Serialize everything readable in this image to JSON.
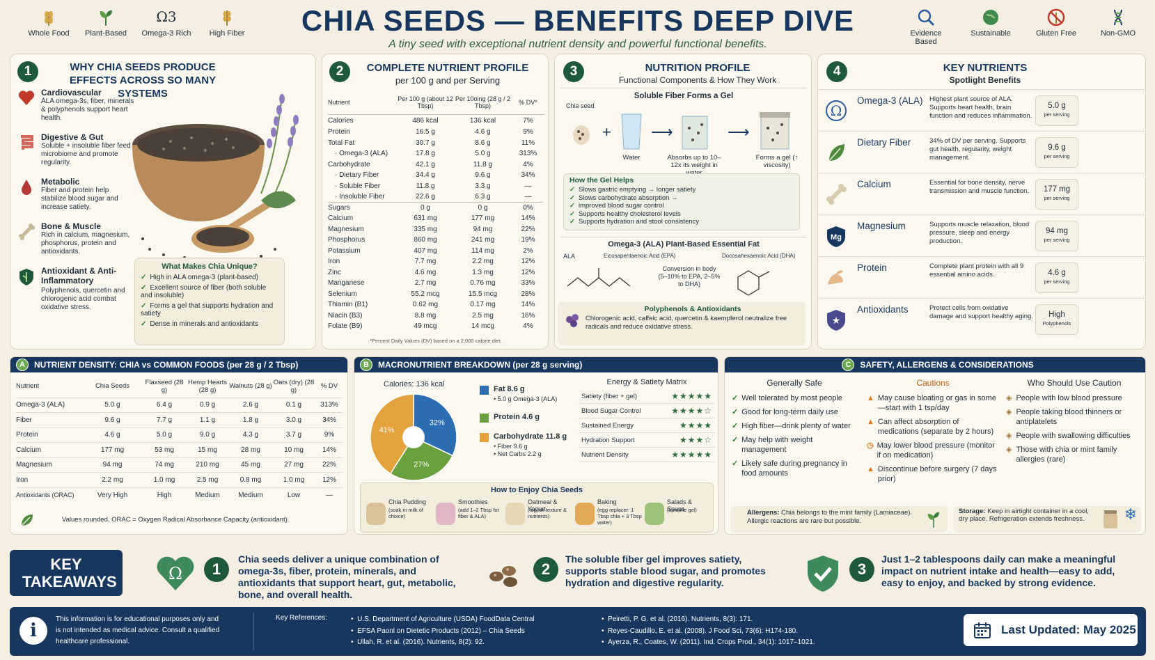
{
  "header": {
    "title": "CHIA SEEDS — BENEFITS DEEP DIVE",
    "subtitle": "A tiny seed with exceptional nutrient density and powerful functional benefits.",
    "left_badges": [
      "Whole Food",
      "Plant-Based",
      "Omega-3 Rich",
      "High Fiber"
    ],
    "omega_symbol": "Ω3",
    "right_badges": [
      "Evidence Based",
      "Sustainable",
      "Gluten Free",
      "Non-GMO"
    ]
  },
  "section1": {
    "num": "1",
    "title": "WHY CHIA SEEDS PRODUCE EFFECTS ACROSS SO MANY SYSTEMS",
    "systems": [
      {
        "name": "Cardiovascular",
        "desc": "ALA omega-3s, fiber, minerals & polyphenols support heart health.",
        "icon": "heart-icon"
      },
      {
        "name": "Digestive & Gut",
        "desc": "Soluble + insoluble fiber feed microbiome and promote regularity.",
        "icon": "gut-icon"
      },
      {
        "name": "Metabolic",
        "desc": "Fiber and protein help stabilize blood sugar and increase satiety.",
        "icon": "drop-icon"
      },
      {
        "name": "Bone & Muscle",
        "desc": "Rich in calcium, magnesium, phosphorus, protein and antioxidants.",
        "icon": "bone-icon"
      },
      {
        "name": "Antioxidant & Anti-Inflammatory",
        "desc": "Polyphenols, quercetin and chlorogenic acid combat oxidative stress.",
        "icon": "shield-icon"
      }
    ],
    "unique_title": "What Makes Chia Unique?",
    "unique_items": [
      "High in ALA omega-3 (plant-based)",
      "Excellent source of fiber (both soluble and insoluble)",
      "Forms a gel that supports hydration and satiety",
      "Dense in minerals and antioxidants"
    ]
  },
  "section2": {
    "num": "2",
    "title": "COMPLETE NUTRIENT PROFILE",
    "subtitle": "per 100 g and per Serving",
    "headers": [
      "Nutrient",
      "Per 100 g (about 12 Tbsp)",
      "Per 10oing (28 g / 2 Tbsp)",
      "% DV*"
    ],
    "rows": [
      [
        "Calories",
        "486 kcal",
        "136 kcal",
        "7%"
      ],
      [
        "Protein",
        "16.5 g",
        "4.6 g",
        "9%"
      ],
      [
        "Total Fat",
        "30.7 g",
        "8.6 g",
        "11%"
      ],
      [
        "· Omega-3 (ALA)",
        "17.8 g",
        "5.0 g",
        "313%"
      ],
      [
        "Carbohydrate",
        "42.1 g",
        "11.8 g",
        "4%"
      ],
      [
        "· Dietary Fiber",
        "34.4 g",
        "9.6 g",
        "34%"
      ],
      [
        "· Soluble Fiber",
        "11.8 g",
        "3.3 g",
        "—"
      ],
      [
        "· Insoluble Fiber",
        "22.6 g",
        "6.3 g",
        "—"
      ],
      [
        "Sugars",
        "0 g",
        "0 g",
        "0%"
      ],
      [
        "Calcium",
        "631 mg",
        "177 mg",
        "14%"
      ],
      [
        "Magnesium",
        "335 mg",
        "94 mg",
        "22%"
      ],
      [
        "Phosphorus",
        "860 mg",
        "241 mg",
        "19%"
      ],
      [
        "Potassium",
        "407 mg",
        "114 mg",
        "2%"
      ],
      [
        "Iron",
        "7.7 mg",
        "2.2 mg",
        "12%"
      ],
      [
        "Zinc",
        "4.6 mg",
        "1.3 mg",
        "12%"
      ],
      [
        "Manganese",
        "2.7 mg",
        "0.76 mg",
        "33%"
      ],
      [
        "Selenium",
        "55.2 mcg",
        "15.5 mcg",
        "28%"
      ],
      [
        "Thiamin (B1)",
        "0.62 mg",
        "0.17 mg",
        "14%"
      ],
      [
        "Niacin (B3)",
        "8.8 mg",
        "2.5 mg",
        "16%"
      ],
      [
        "Folate (B9)",
        "49 mcg",
        "14 mcg",
        "4%"
      ]
    ],
    "footnote": "*Percent Daily Values (DV) based on a 2,000 calorie diet."
  },
  "section3": {
    "num": "3",
    "title": "NUTRITION PROFILE",
    "subtitle": "Functional Components & How They Work",
    "gel_title": "Soluble Fiber Forms a Gel",
    "gel_steps": [
      "Chia seed",
      "Water",
      "Absorbs up to 10–12x its weight in water",
      "Forms a gel (↑ viscosity)"
    ],
    "helps_title": "How the Gel Helps",
    "helps": [
      "Slows gastric emptying → longer satiety",
      "Slows carbohydrate absorption →",
      "improved blood sugar control",
      "Supports healthy cholesterol levels",
      "Supports hydration and stool consistency"
    ],
    "omega_title": "Omega-3 (ALA) Plant-Based Essential Fat",
    "omega_labels": [
      "ALA",
      "Eicosapentaenoic Acid (EPA)",
      "Docosahexaenoic Acid (DHA)"
    ],
    "conversion": "Conversion in body (5–10% to EPA, 2–5% to DHA)",
    "poly_title": "Polyphenols & Antioxidants",
    "poly_text": "Chlorogenic acid, caffeic acid, quercetin & kaempferol neutralize free radicals and reduce oxidative stress."
  },
  "section4": {
    "num": "4",
    "title": "KEY NUTRIENTS",
    "subtitle": "Spotlight Benefits",
    "items": [
      {
        "name": "Omega-3 (ALA)",
        "desc": "Highest plant source of ALA. Supports heart health, brain function and reduces inflammation.",
        "value": "5.0 g",
        "unit": "per serving",
        "icon": "omega-icon"
      },
      {
        "name": "Dietary Fiber",
        "desc": "34% of DV per serving. Supports gut health, regularity, weight management.",
        "value": "9.6 g",
        "unit": "per serving",
        "icon": "leaf-icon"
      },
      {
        "name": "Calcium",
        "desc": "Essential for bone density, nerve transmission and muscle function.",
        "value": "177 mg",
        "unit": "per serving",
        "icon": "bone-icon"
      },
      {
        "name": "Magnesium",
        "desc": "Supports muscle relaxation, blood pressure, sleep and energy production.",
        "value": "94 mg",
        "unit": "per serving",
        "icon": "mg-icon"
      },
      {
        "name": "Protein",
        "desc": "Complete plant protein with all 9 essential amino acids.",
        "value": "4.6 g",
        "unit": "per serving",
        "icon": "muscle-icon"
      },
      {
        "name": "Antioxidants",
        "desc": "Protect cells from oxidative damage and support healthy aging.",
        "value": "High",
        "unit": "Polyphenols",
        "icon": "star-shield-icon"
      }
    ]
  },
  "sectionA": {
    "letter": "A",
    "title": "NUTRIENT DENSITY: CHIA vs COMMON FOODS (per 28 g / 2 Tbsp)",
    "headers": [
      "Nutrient",
      "Chia Seeds",
      "Flaxseed (28 g)",
      "Hemp Hearts (28 g)",
      "Walnuts (28 g)",
      "Oats (dry) (28 g)",
      "% DV"
    ],
    "rows": [
      [
        "Omega-3 (ALA)",
        "5.0 g",
        "6.4 g",
        "0.9 g",
        "2.6 g",
        "0.1 g",
        "313%"
      ],
      [
        "Fiber",
        "9.6 g",
        "7.7 g",
        "1.1 g",
        "1.8 g",
        "3.0 g",
        "34%"
      ],
      [
        "Protein",
        "4.6 g",
        "5.0 g",
        "9.0 g",
        "4.3 g",
        "3.7 g",
        "9%"
      ],
      [
        "Calcium",
        "177 mg",
        "53 mg",
        "15 mg",
        "28 mg",
        "10 mg",
        "14%"
      ],
      [
        "Magnesium",
        "94 mg",
        "74 mg",
        "210 mg",
        "45 mg",
        "27 mg",
        "22%"
      ],
      [
        "Iron",
        "2.2 mg",
        "1.0 mg",
        "2.5 mg",
        "0.8 mg",
        "1.0 mg",
        "12%"
      ],
      [
        "Antioxidants (ORAC)",
        "Very High",
        "High",
        "Medium",
        "Medium",
        "Low",
        "—"
      ]
    ],
    "note": "Values rounded. ORAC = Oxygen Radical Absorbance Capacity (antioxidant)."
  },
  "sectionB": {
    "letter": "B",
    "title": "MACRONUTRIENT BREAKDOWN (per 28 g serving)",
    "calories": "Calories: 136 kcal",
    "fat": "Fat 8.6 g",
    "fat_sub": "• 5.0 g Omega-3 (ALA)",
    "protein": "Protein 4.6 g",
    "carb": "Carbohydrate 11.8 g",
    "carb_sub1": "• Fiber 9.6 g",
    "carb_sub2": "• Net Carbs 2.2 g",
    "matrix_title": "Energy & Satiety Matrix",
    "matrix": [
      {
        "label": "Satiety (fiber + gel)",
        "stars": "★★★★★"
      },
      {
        "label": "Blood Sugar Control",
        "stars": "★★★★☆"
      },
      {
        "label": "Sustained Energy",
        "stars": "★★★★"
      },
      {
        "label": "Hydration Support",
        "stars": "★★★☆"
      },
      {
        "label": "Nutrient Density",
        "stars": "★★★★★"
      }
    ],
    "enjoy_title": "How to Enjoy Chia Seeds",
    "enjoy": [
      {
        "name": "Chia Pudding",
        "desc": "(soak in milk of choice)"
      },
      {
        "name": "Smoothies",
        "desc": "(add 1–2 Tbsp for fiber & ALA)"
      },
      {
        "name": "Oatmeal & Yogurt",
        "desc": "(top for texture & nutrients)"
      },
      {
        "name": "Baking",
        "desc": "(egg replacer: 1 Tbsp chia + 3 Tbsp water)"
      },
      {
        "name": "Salads & Soups",
        "desc": "(sprinkle gel)"
      }
    ]
  },
  "chart_data": {
    "type": "pie",
    "categories": [
      "Fat",
      "Protein",
      "Carbohydrate"
    ],
    "values": [
      32,
      27,
      41
    ],
    "colors": [
      "#2c6db3",
      "#6aa13f",
      "#e3a23b"
    ],
    "labels": [
      "32%",
      "27%",
      "41%"
    ]
  },
  "sectionC": {
    "letter": "C",
    "title": "SAFETY, ALLERGENS & CONSIDERATIONS",
    "safe_title": "Generally Safe",
    "safe": [
      "Well tolerated by most people",
      "Good for long-term daily use",
      "High fiber—drink plenty of water",
      "May help with weight management",
      "Likely safe during pregnancy in food amounts"
    ],
    "cautions_title": "Cautions",
    "cautions": [
      "May cause bloating or gas in some—start with 1 tsp/day",
      "Can affect absorption of medications (separate by 2 hours)",
      "May lower blood pressure (monitor if on medication)",
      "Discontinue before surgery (7 days prior)"
    ],
    "who_title": "Who Should Use Caution",
    "who": [
      "People with low blood pressure",
      "People taking blood thinners or antiplatelets",
      "People with swallowing difficulties",
      "Those with chia or mint family allergies (rare)"
    ],
    "allergens_label": "Allergens:",
    "allergens_text": "Chia belongs to the mint family (Lamiaceae). Allergic reactions are rare but possible.",
    "storage_label": "Storage:",
    "storage_text": "Keep in airtight container in a cool, dry place. Refrigeration extends freshness."
  },
  "takeaways": {
    "title": "KEY TAKEAWAYS",
    "items": [
      {
        "num": "1",
        "text": "Chia seeds deliver a unique combination of omega-3s, fiber, protein, minerals, and antioxidants that support heart, gut, metabolic, bone, and overall health."
      },
      {
        "num": "2",
        "text": "The soluble fiber gel improves satiety, supports stable blood sugar, and promotes hydration and digestive regularity."
      },
      {
        "num": "3",
        "text": "Just 1–2 tablespoons daily can make a meaningful impact on nutrient intake and health—easy to add, easy to enjoy, and backed by strong evidence."
      }
    ]
  },
  "footer": {
    "disclaimer": "This information is for educational purposes only and is not intended as medical advice. Consult a qualified healthcare professional.",
    "refs_label": "Key References:",
    "refs_left": [
      "U.S. Department of Agriculture (USDA) FoodData Central",
      "EFSA Paonl on Dietetic Products (2012) – Chia Seeds",
      "Ullah, R. et al. (2016). Nutrients, 8(2): 92."
    ],
    "refs_right": [
      "Peiretti, P. G. et al. (2016). Nutrients, 8(3): 171.",
      "Reyes-Caudillo, E. et al. (2008). J Food Sci, 73(6): H174-180.",
      "Ayerza, R., Coates, W. (2011). Ind. Crops Prod., 34(1): 1017–1021."
    ],
    "updated": "Last Updated: May 2025"
  }
}
